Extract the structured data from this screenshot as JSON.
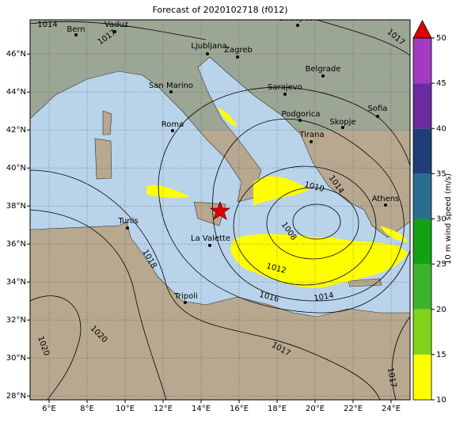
{
  "map": {
    "title": "Forecast of 2020102718 (f012)",
    "lon_ticks": [
      {
        "value": 6,
        "label": "6°E"
      },
      {
        "value": 8,
        "label": "8°E"
      },
      {
        "value": 10,
        "label": "10°E"
      },
      {
        "value": 12,
        "label": "12°E"
      },
      {
        "value": 14,
        "label": "14°E"
      },
      {
        "value": 16,
        "label": "16°E"
      },
      {
        "value": 18,
        "label": "18°E"
      },
      {
        "value": 20,
        "label": "20°E"
      },
      {
        "value": 22,
        "label": "22°E"
      },
      {
        "value": 24,
        "label": "24°E"
      }
    ],
    "lat_ticks": [
      {
        "value": 28,
        "label": "28°N"
      },
      {
        "value": 30,
        "label": "30°N"
      },
      {
        "value": 32,
        "label": "32°N"
      },
      {
        "value": 34,
        "label": "34°N"
      },
      {
        "value": 36,
        "label": "36°N"
      },
      {
        "value": 38,
        "label": "38°N"
      },
      {
        "value": 40,
        "label": "40°N"
      },
      {
        "value": 42,
        "label": "42°N"
      },
      {
        "value": 44,
        "label": "44°N"
      },
      {
        "value": 46,
        "label": "46°N"
      }
    ],
    "cities": [
      "Budapest",
      "Vaduz",
      "Bern",
      "Ljubljana",
      "Zagreb",
      "Belgrade",
      "San Marino",
      "Sarajevo",
      "Sofia",
      "Podgorica",
      "Skopje",
      "Roma",
      "Tirana",
      "Athens",
      "Tunis",
      "La Valette",
      "Tripoli"
    ],
    "isobar_labels": [
      1014,
      1017,
      1017,
      1010,
      1014,
      1008,
      1012,
      1018,
      1014,
      1016,
      1020,
      1020,
      1017,
      1017
    ],
    "colorbar": {
      "label": "10 m wind speed (m/s)",
      "ticks": [
        10,
        15,
        20,
        25,
        30,
        35,
        40,
        45,
        50
      ],
      "colors": [
        "#ffff00",
        "#7fd41a",
        "#3cb32d",
        "#13a113",
        "#2a6d8f",
        "#1e3e75",
        "#6a2ba0",
        "#a23bc0"
      ],
      "extend_color": "#e00000"
    }
  }
}
